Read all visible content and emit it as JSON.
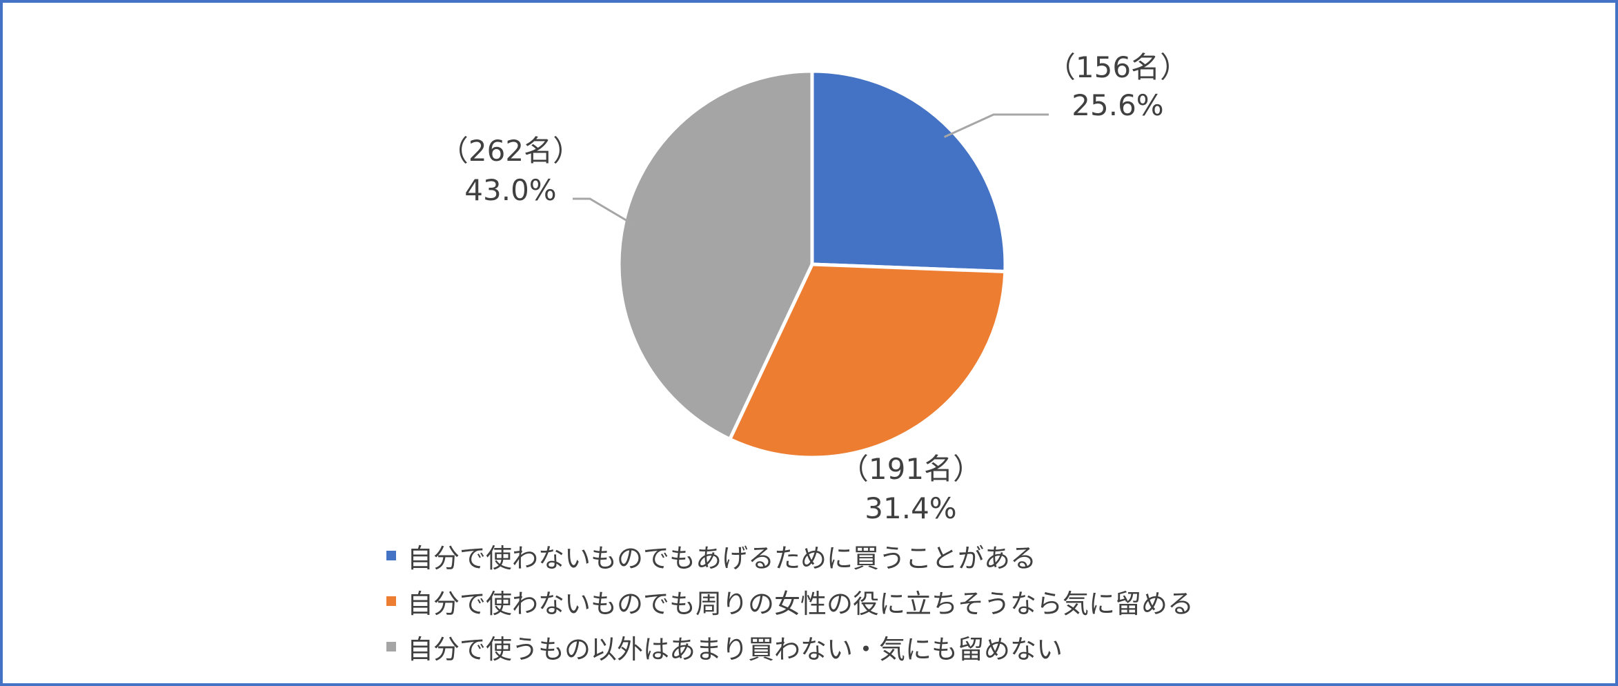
{
  "chart_data": {
    "type": "pie",
    "title": "",
    "categories": [
      "自分で使わないものでもあげるために買うことがある",
      "自分で使わないものでも周りの女性の役に立ちそうなら気に留める",
      "自分で使うもの以外はあまり買わない・気にも留めない"
    ],
    "values": [
      25.6,
      31.4,
      43.0
    ],
    "counts": [
      156,
      191,
      262
    ],
    "labels": [
      {
        "count_text": "（156名）",
        "percent_text": "25.6%"
      },
      {
        "count_text": "（191名）",
        "percent_text": "31.4%"
      },
      {
        "count_text": "（262名）",
        "percent_text": "43.0%"
      }
    ],
    "colors": [
      "#4472C4",
      "#ED7D31",
      "#A5A5A5"
    ],
    "start_angle_deg": 0,
    "direction": "clockwise",
    "legend_position": "bottom",
    "slice_border_color": "#ffffff",
    "leader_line_color": "#A6A6A6"
  },
  "frame": {
    "border_color": "#4472C4"
  }
}
